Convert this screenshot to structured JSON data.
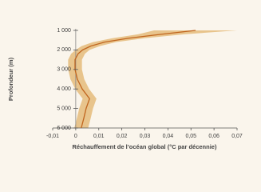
{
  "chart_data": {
    "type": "line",
    "x_label": "Réchauffement de l’océan global (°C par décennie)",
    "y_label": "Profondeur (m)",
    "y": [
      1000,
      1200,
      1400,
      1600,
      1800,
      2000,
      2200,
      2500,
      3000,
      3500,
      4000,
      4500,
      5000,
      5500,
      6000
    ],
    "series": [
      {
        "color": "#c0651e",
        "band_color": "#e8c48c",
        "values": [
          0.052,
          0.037,
          0.023,
          0.0125,
          0.0066,
          0.003,
          0.001,
          -0.0003,
          -0.0003,
          0.0007,
          0.0028,
          0.006,
          0.0045,
          0.0035,
          0.0024
        ],
        "lower": [
          0.034,
          0.027,
          0.016,
          0.0075,
          0.0026,
          0.0,
          -0.002,
          -0.0033,
          -0.0033,
          -0.0023,
          -0.0002,
          0.003,
          0.0015,
          0.0005,
          -0.0006
        ],
        "upper": [
          0.07,
          0.047,
          0.03,
          0.0175,
          0.0106,
          0.006,
          0.004,
          0.0027,
          0.0027,
          0.0037,
          0.0058,
          0.009,
          0.0075,
          0.0065,
          0.0054
        ]
      }
    ],
    "xlim": [
      -0.01,
      0.07
    ],
    "xticks": [
      {
        "value": -0.01,
        "label": "-0,01"
      },
      0,
      {
        "value": 0.01,
        "label": "0,01"
      },
      {
        "value": 0.02,
        "label": "0,02"
      },
      {
        "value": 0.03,
        "label": "0,03"
      },
      {
        "value": 0.04,
        "label": "0,04"
      },
      {
        "value": 0.05,
        "label": "0,05"
      },
      {
        "value": 0.06,
        "label": "0,06"
      },
      {
        "value": 0.07,
        "label": "0,07"
      }
    ],
    "ylim": [
      1000,
      6000
    ],
    "y_inverted": true,
    "yticks": [
      {
        "value": 1000,
        "label": "1 000"
      },
      {
        "value": 2000,
        "label": "2 000"
      },
      {
        "value": 3000,
        "label": "3 000"
      },
      {
        "value": 4000,
        "label": "4 000"
      },
      {
        "value": 5000,
        "label": "5 000"
      },
      {
        "value": 6000,
        "label": "6 000"
      }
    ]
  }
}
